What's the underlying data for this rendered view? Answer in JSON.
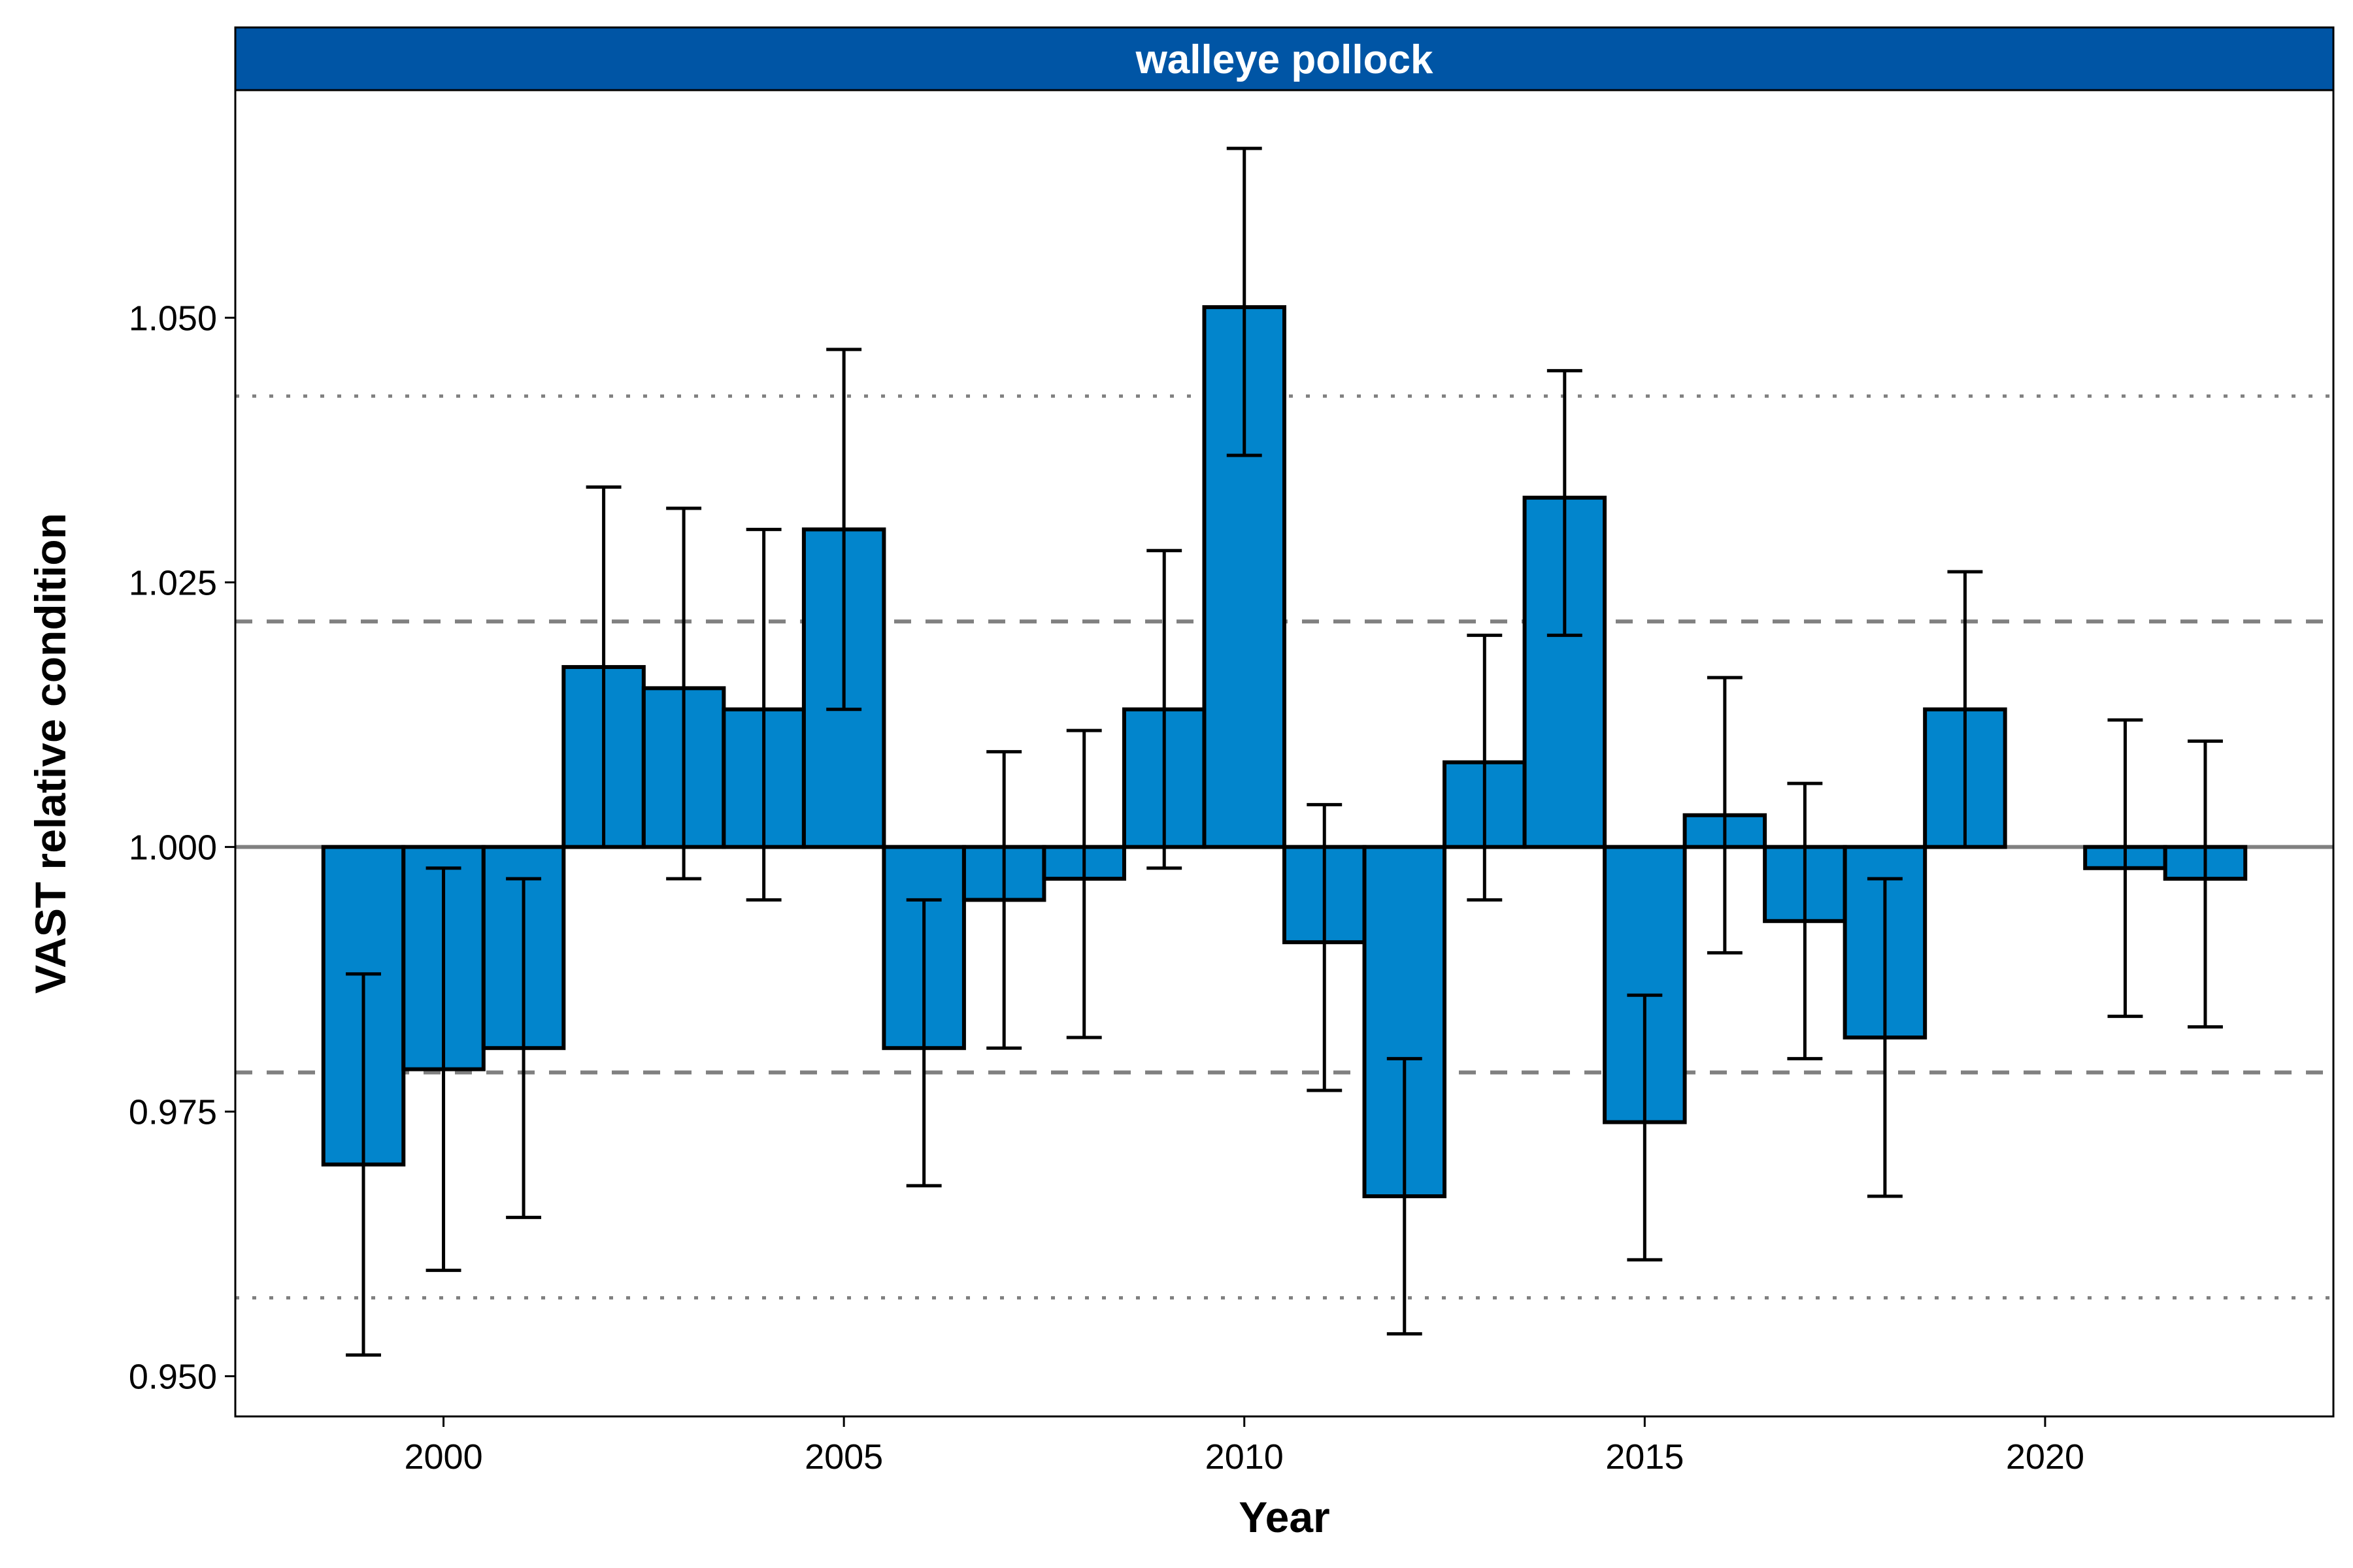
{
  "chart_data": {
    "type": "bar",
    "title": "walleye pollock",
    "xlabel": "Year",
    "ylabel": "VAST relative condition",
    "xlim": [
      1997.4,
      2023.6
    ],
    "ylim": [
      0.9462,
      1.0715
    ],
    "baseline": 1.0,
    "x_ticks": [
      2000,
      2005,
      2010,
      2015,
      2020
    ],
    "y_ticks": [
      0.95,
      0.975,
      1.0,
      1.025,
      1.05
    ],
    "y_tick_labels": [
      "0.950",
      "0.975",
      "1.000",
      "1.025",
      "1.050"
    ],
    "reference_lines": [
      {
        "y": 1.0,
        "style": "solid"
      },
      {
        "y": 1.0213,
        "style": "dashed"
      },
      {
        "y": 0.9787,
        "style": "dashed"
      },
      {
        "y": 1.0426,
        "style": "dotted"
      },
      {
        "y": 0.9574,
        "style": "dotted"
      }
    ],
    "grid": false,
    "colors": {
      "bar_fill": "#0285CC",
      "strip": "#0055A5",
      "reference": "#808080"
    },
    "series": [
      {
        "x": [
          1999,
          2000,
          2001,
          2002,
          2003,
          2004,
          2005,
          2006,
          2007,
          2008,
          2009,
          2010,
          2011,
          2012,
          2013,
          2014,
          2015,
          2016,
          2017,
          2018,
          2019,
          2021,
          2022
        ],
        "values": [
          0.97,
          0.979,
          0.981,
          1.017,
          1.015,
          1.013,
          1.03,
          0.981,
          0.995,
          0.997,
          1.013,
          1.051,
          0.991,
          0.967,
          1.008,
          1.033,
          0.974,
          1.003,
          0.993,
          0.982,
          1.013,
          0.998,
          0.997
        ],
        "lower": [
          0.952,
          0.96,
          0.965,
          1.0,
          0.997,
          0.995,
          1.013,
          0.968,
          0.981,
          0.982,
          0.998,
          1.037,
          0.977,
          0.954,
          0.995,
          1.02,
          0.961,
          0.99,
          0.98,
          0.967,
          1.0,
          0.984,
          0.983
        ],
        "upper": [
          0.988,
          0.998,
          0.997,
          1.034,
          1.032,
          1.03,
          1.047,
          0.995,
          1.009,
          1.011,
          1.028,
          1.066,
          1.004,
          0.98,
          1.02,
          1.045,
          0.986,
          1.016,
          1.006,
          0.997,
          1.026,
          1.012,
          1.01
        ]
      }
    ]
  }
}
